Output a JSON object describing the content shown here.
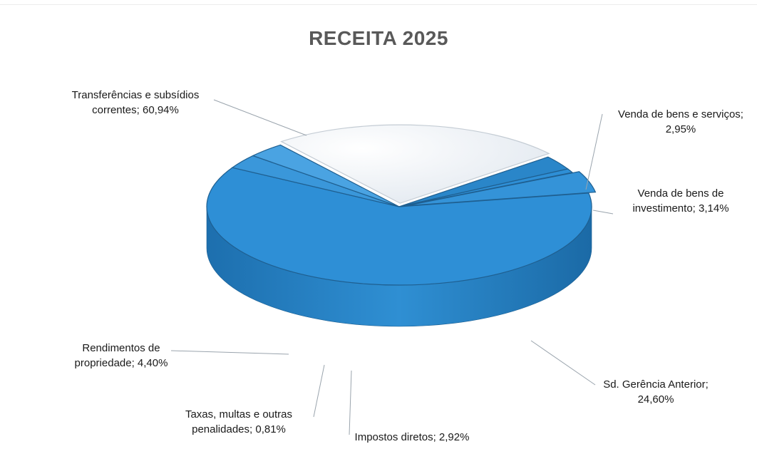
{
  "chart_data": {
    "type": "pie",
    "title": "RECEITA 2025",
    "slices": [
      {
        "label_lines": [
          "Transferências e subsídios",
          "correntes; 60,94%"
        ],
        "category": "Transferências e subsídios correntes",
        "value": 60.94,
        "color": "#2e8fd6"
      },
      {
        "label_lines": [
          "Venda de bens e serviços;",
          "2,95%"
        ],
        "category": "Venda de bens e serviços",
        "value": 2.95,
        "color": "#3a97da"
      },
      {
        "label_lines": [
          "Venda de bens de",
          "investimento; 3,14%"
        ],
        "category": "Venda de bens de investimento",
        "value": 3.14,
        "color": "#4aa3e2"
      },
      {
        "label_lines": [
          "Sd. Gerência Anterior;",
          "24,60%"
        ],
        "category": "Sd. Gerência Anterior",
        "value": 24.6,
        "color": "#e8eef4"
      },
      {
        "label_lines": [
          "Impostos diretos; 2,92%"
        ],
        "category": "Impostos diretos",
        "value": 2.92,
        "color": "#2a86c9"
      },
      {
        "label_lines": [
          "Taxas, multas e outras",
          "penalidades; 0,81%"
        ],
        "category": "Taxas, multas e outras penalidades",
        "value": 0.81,
        "color": "#2e8fd6"
      },
      {
        "label_lines": [
          "Rendimentos de",
          "propriedade; 4,40%"
        ],
        "category": "Rendimentos de propriedade",
        "value": 4.4,
        "color": "#3493d8"
      }
    ]
  }
}
